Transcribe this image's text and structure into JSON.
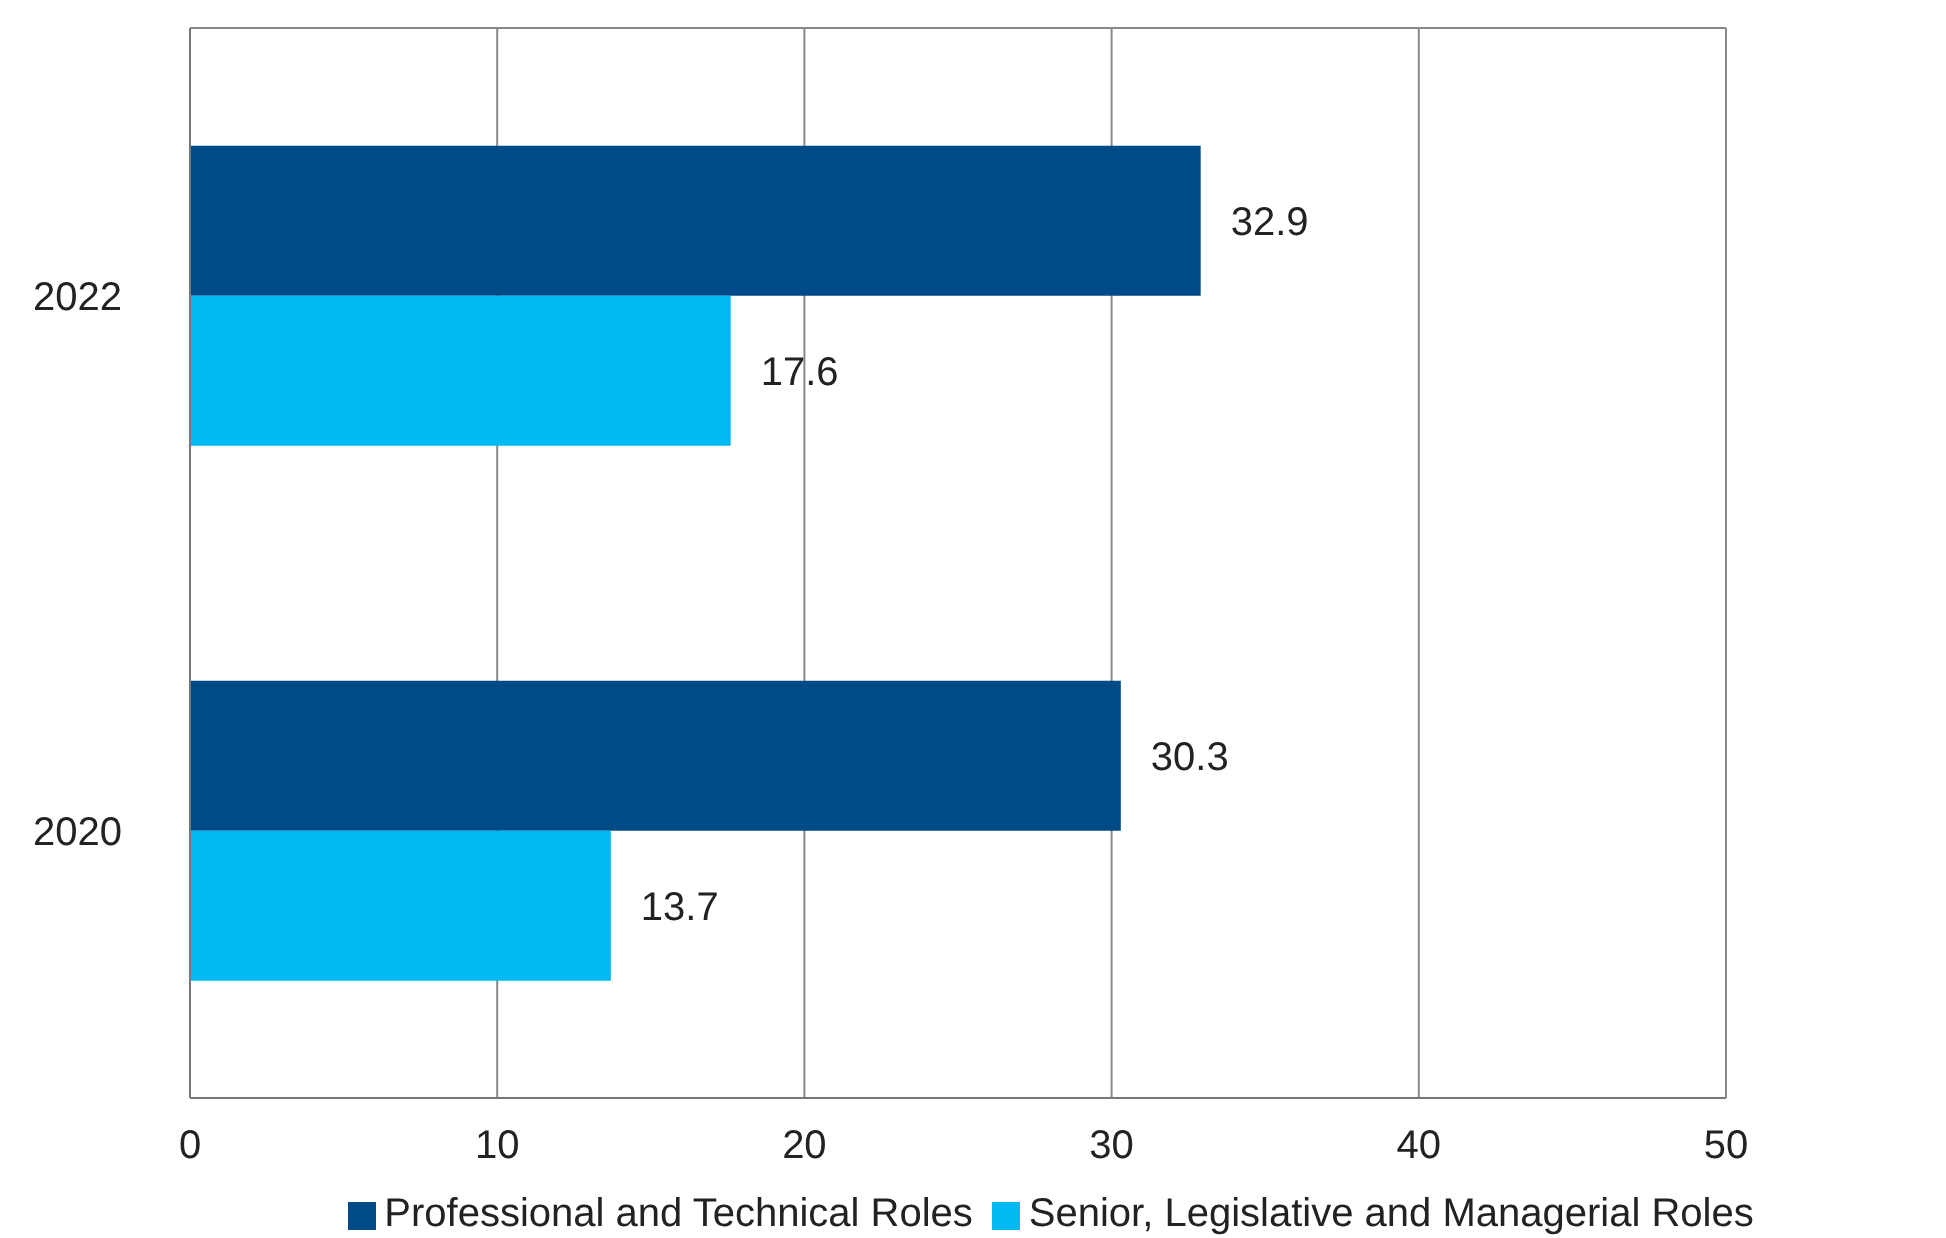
{
  "chart_data": {
    "type": "bar",
    "orientation": "horizontal",
    "categories": [
      "2022",
      "2020"
    ],
    "series": [
      {
        "name": "Professional and Technical Roles",
        "color": "#004a87",
        "values": [
          32.9,
          30.3
        ]
      },
      {
        "name": "Senior, Legislative and Managerial Roles",
        "color": "#00b9f0",
        "values": [
          17.6,
          13.7
        ]
      }
    ],
    "xlim": [
      0,
      50
    ],
    "xticks": [
      0,
      10,
      20,
      30,
      40,
      50
    ],
    "grid": "x",
    "legend": "bottom",
    "data_labels": true
  }
}
